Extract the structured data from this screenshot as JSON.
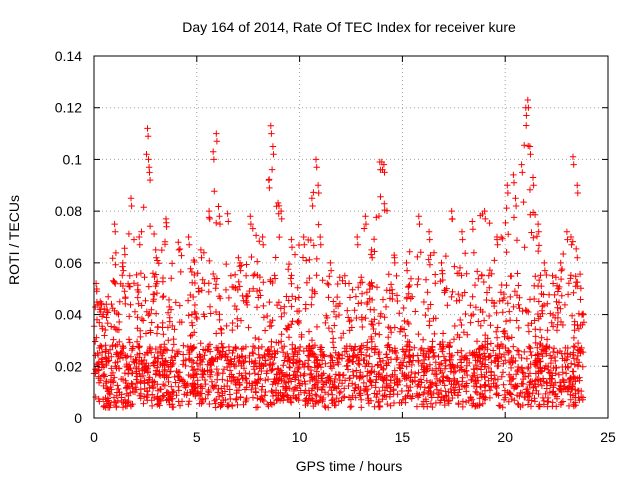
{
  "chart_data": {
    "type": "scatter",
    "title": "Day 164 of 2014, Rate Of TEC Index for receiver kure",
    "xlabel": "GPS time / hours",
    "ylabel": "ROTI / TECUs",
    "xlim": [
      0,
      25
    ],
    "ylim": [
      0,
      0.14
    ],
    "xticks": [
      0,
      5,
      10,
      15,
      20,
      25
    ],
    "xtick_labels": [
      "0",
      "5",
      "10",
      "15",
      "20",
      "25"
    ],
    "yticks": [
      0,
      0.02,
      0.04,
      0.06,
      0.08,
      0.1,
      0.12,
      0.14
    ],
    "ytick_labels": [
      "0",
      "0.02",
      "0.04",
      "0.06",
      "0.08",
      "0.1",
      "0.12",
      "0.14"
    ],
    "grid": true,
    "marker": "+",
    "marker_color": "#ff0000",
    "data_x_range": [
      0,
      23.8
    ],
    "series": [
      {
        "name": "ROTI",
        "x": [
          0.1,
          0.3,
          0.6,
          1.0,
          1.4,
          1.8,
          2.2,
          2.6,
          2.65,
          2.7,
          3.0,
          3.5,
          4.1,
          4.6,
          5.2,
          5.6,
          5.8,
          5.95,
          6.1,
          6.5,
          7.1,
          7.6,
          8.2,
          8.5,
          8.6,
          8.7,
          9.1,
          9.6,
          10.2,
          10.6,
          10.8,
          10.9,
          11.0,
          11.5,
          12.2,
          12.8,
          13.2,
          13.5,
          13.9,
          14.0,
          14.1,
          14.6,
          15.2,
          15.8,
          16.3,
          16.9,
          17.4,
          17.9,
          18.4,
          19.0,
          19.6,
          20.1,
          20.4,
          20.5,
          20.8,
          21.0,
          21.1,
          21.2,
          21.35,
          21.6,
          21.9,
          22.3,
          22.7,
          23.0,
          23.2,
          23.3,
          23.5,
          23.8
        ],
        "y": [
          0.052,
          0.045,
          0.044,
          0.075,
          0.06,
          0.085,
          0.07,
          0.112,
          0.1,
          0.095,
          0.065,
          0.077,
          0.068,
          0.07,
          0.065,
          0.08,
          0.103,
          0.11,
          0.078,
          0.079,
          0.06,
          0.078,
          0.07,
          0.092,
          0.113,
          0.105,
          0.08,
          0.069,
          0.07,
          0.085,
          0.1,
          0.09,
          0.07,
          0.06,
          0.055,
          0.07,
          0.078,
          0.065,
          0.099,
          0.099,
          0.098,
          0.063,
          0.06,
          0.078,
          0.072,
          0.06,
          0.08,
          0.072,
          0.076,
          0.08,
          0.07,
          0.09,
          0.094,
          0.085,
          0.098,
          0.12,
          0.123,
          0.105,
          0.093,
          0.075,
          0.06,
          0.055,
          0.06,
          0.072,
          0.07,
          0.101,
          0.09,
          0.04
        ]
      }
    ]
  }
}
